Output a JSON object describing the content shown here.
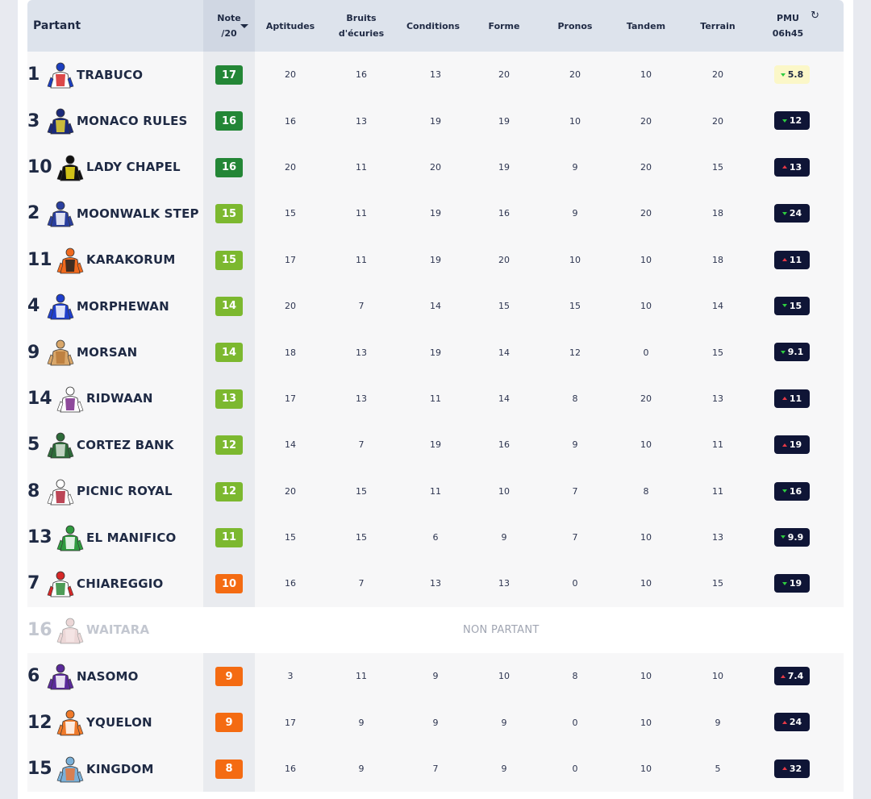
{
  "header": {
    "partant": "Partant",
    "note_line1": "Note",
    "note_line2": "/20",
    "aptitudes": "Aptitudes",
    "bruits_line1": "Bruits",
    "bruits_line2": "d'écuries",
    "conditions": "Conditions",
    "forme": "Forme",
    "pronos": "Pronos",
    "tandem": "Tandem",
    "terrain": "Terrain",
    "pmu_line1": "PMU",
    "pmu_line2": "06h45"
  },
  "non_partant_label": "NON PARTANT",
  "colors": {
    "note_dark_green": "#238636",
    "note_light_green": "#7cb82f",
    "note_orange": "#f46b12",
    "odds_dark": "#0f1536",
    "odds_fav": "#fbf7c8"
  },
  "rows": [
    {
      "num": "1",
      "name": "TRABUCO",
      "note": "17",
      "note_color": "#238636",
      "aptitudes": "20",
      "bruits": "16",
      "conditions": "13",
      "forme": "20",
      "pronos": "20",
      "tandem": "10",
      "terrain": "20",
      "odds": "5.8",
      "trend": "down",
      "fav": true,
      "silk": [
        "#ffffff",
        "#d62828",
        "#1d3fbf"
      ]
    },
    {
      "num": "3",
      "name": "MONACO RULES",
      "note": "16",
      "note_color": "#238636",
      "aptitudes": "16",
      "bruits": "13",
      "conditions": "19",
      "forme": "19",
      "pronos": "10",
      "tandem": "20",
      "terrain": "20",
      "odds": "12",
      "trend": "down",
      "silk": [
        "#1b2a7a",
        "#e9d530",
        "#1b2a7a"
      ]
    },
    {
      "num": "10",
      "name": "LADY CHAPEL",
      "note": "16",
      "note_color": "#238636",
      "aptitudes": "20",
      "bruits": "11",
      "conditions": "20",
      "forme": "19",
      "pronos": "9",
      "tandem": "20",
      "terrain": "15",
      "odds": "13",
      "trend": "up",
      "silk": [
        "#111111",
        "#f2e11a",
        "#111111"
      ]
    },
    {
      "num": "2",
      "name": "MOONWALK STEP",
      "note": "15",
      "note_color": "#7cb82f",
      "aptitudes": "15",
      "bruits": "11",
      "conditions": "19",
      "forme": "16",
      "pronos": "9",
      "tandem": "20",
      "terrain": "18",
      "odds": "24",
      "trend": "down",
      "silk": [
        "#2a3f9e",
        "#ffffff",
        "#2a3f9e"
      ]
    },
    {
      "num": "11",
      "name": "KARAKORUM",
      "note": "15",
      "note_color": "#7cb82f",
      "aptitudes": "17",
      "bruits": "11",
      "conditions": "19",
      "forme": "20",
      "pronos": "10",
      "tandem": "10",
      "terrain": "18",
      "odds": "11",
      "trend": "up",
      "silk": [
        "#f06a1e",
        "#222222",
        "#f06a1e"
      ]
    },
    {
      "num": "4",
      "name": "MORPHEWAN",
      "note": "14",
      "note_color": "#7cb82f",
      "aptitudes": "20",
      "bruits": "7",
      "conditions": "14",
      "forme": "15",
      "pronos": "15",
      "tandem": "10",
      "terrain": "14",
      "odds": "15",
      "trend": "down",
      "silk": [
        "#1f3fcc",
        "#ffffff",
        "#1f3fcc"
      ]
    },
    {
      "num": "9",
      "name": "MORSAN",
      "note": "14",
      "note_color": "#7cb82f",
      "aptitudes": "18",
      "bruits": "13",
      "conditions": "19",
      "forme": "14",
      "pronos": "12",
      "tandem": "0",
      "terrain": "15",
      "odds": "9.1",
      "trend": "down",
      "silk": [
        "#d9a76a",
        "#b97a3a",
        "#d9a76a"
      ]
    },
    {
      "num": "14",
      "name": "RIDWAAN",
      "note": "13",
      "note_color": "#7cb82f",
      "aptitudes": "17",
      "bruits": "13",
      "conditions": "11",
      "forme": "14",
      "pronos": "8",
      "tandem": "20",
      "terrain": "13",
      "odds": "11",
      "trend": "up",
      "silk": [
        "#ffffff",
        "#7a2a8a",
        "#ffffff"
      ]
    },
    {
      "num": "5",
      "name": "CORTEZ BANK",
      "note": "12",
      "note_color": "#7cb82f",
      "aptitudes": "14",
      "bruits": "7",
      "conditions": "19",
      "forme": "16",
      "pronos": "9",
      "tandem": "10",
      "terrain": "11",
      "odds": "19",
      "trend": "up",
      "silk": [
        "#2e6b3a",
        "#d9e4d9",
        "#2e6b3a"
      ]
    },
    {
      "num": "8",
      "name": "PICNIC ROYAL",
      "note": "12",
      "note_color": "#7cb82f",
      "aptitudes": "20",
      "bruits": "15",
      "conditions": "11",
      "forme": "10",
      "pronos": "7",
      "tandem": "8",
      "terrain": "11",
      "odds": "16",
      "trend": "down",
      "silk": [
        "#ffffff",
        "#b0263a",
        "#ffffff"
      ]
    },
    {
      "num": "13",
      "name": "EL MANIFICO",
      "note": "11",
      "note_color": "#7cb82f",
      "aptitudes": "15",
      "bruits": "15",
      "conditions": "6",
      "forme": "9",
      "pronos": "7",
      "tandem": "10",
      "terrain": "13",
      "odds": "9.9",
      "trend": "down",
      "silk": [
        "#2f9a3e",
        "#ffffff",
        "#2f9a3e"
      ]
    },
    {
      "num": "7",
      "name": "CHIAREGGIO",
      "note": "10",
      "note_color": "#f46b12",
      "aptitudes": "16",
      "bruits": "7",
      "conditions": "13",
      "forme": "13",
      "pronos": "0",
      "tandem": "10",
      "terrain": "15",
      "odds": "19",
      "trend": "down",
      "silk": [
        "#ffffff",
        "#2e8b3a",
        "#d62828"
      ]
    },
    {
      "num": "16",
      "name": "WAITARA",
      "non_partant": true,
      "silk": [
        "#d7a8a8",
        "#eac9c9",
        "#d7a8a8"
      ]
    },
    {
      "num": "6",
      "name": "NASOMO",
      "note": "9",
      "note_color": "#f46b12",
      "aptitudes": "3",
      "bruits": "11",
      "conditions": "9",
      "forme": "10",
      "pronos": "8",
      "tandem": "10",
      "terrain": "10",
      "odds": "7.4",
      "trend": "up",
      "silk": [
        "#5a2a9a",
        "#ffffff",
        "#5a2a9a"
      ]
    },
    {
      "num": "12",
      "name": "YQUELON",
      "note": "9",
      "note_color": "#f46b12",
      "aptitudes": "17",
      "bruits": "9",
      "conditions": "9",
      "forme": "9",
      "pronos": "0",
      "tandem": "10",
      "terrain": "9",
      "odds": "24",
      "trend": "up",
      "silk": [
        "#f07a2a",
        "#ffffff",
        "#f07a2a"
      ]
    },
    {
      "num": "15",
      "name": "KINGDOM",
      "note": "8",
      "note_color": "#f46b12",
      "aptitudes": "16",
      "bruits": "9",
      "conditions": "7",
      "forme": "9",
      "pronos": "0",
      "tandem": "10",
      "terrain": "5",
      "odds": "32",
      "trend": "up",
      "silk": [
        "#7ab0d8",
        "#e8773a",
        "#7ab0d8"
      ]
    }
  ]
}
